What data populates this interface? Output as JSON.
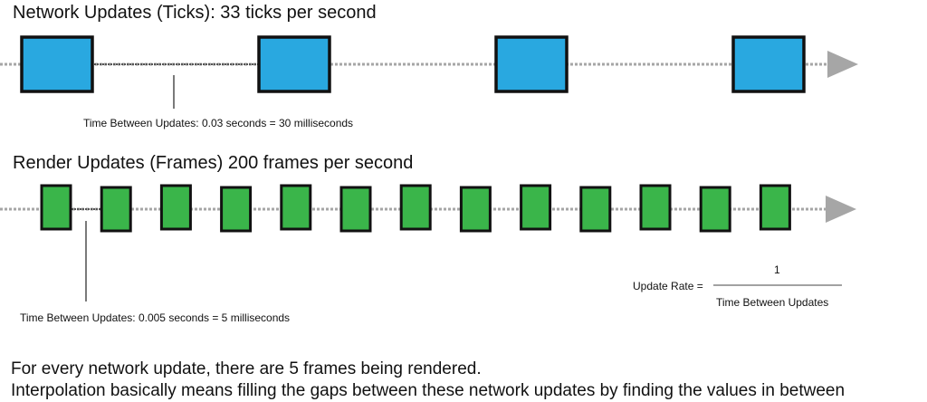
{
  "network": {
    "title": "Network Updates (Ticks): 33 ticks per second",
    "gap_label": "Time Between Updates:  0.03 seconds = 30 milliseconds",
    "block_count": 4,
    "block_color": "#29a8e0"
  },
  "render": {
    "title": "Render Updates (Frames) 200 frames per second",
    "gap_label": "Time Between Updates: 0.005 seconds = 5 milliseconds",
    "block_count": 13,
    "block_color": "#3ab54a"
  },
  "formula": {
    "lhs": "Update Rate =",
    "numerator": "1",
    "denominator": "Time Between Updates"
  },
  "footer": {
    "line1": "For every network update, there are 5 frames being rendered.",
    "line2": "Interpolation basically means filling the gaps between these network updates by finding the values in between"
  },
  "colors": {
    "timeline": "#a6a6a6",
    "arrowhead": "#a6a6a6",
    "block_stroke": "#111111"
  }
}
